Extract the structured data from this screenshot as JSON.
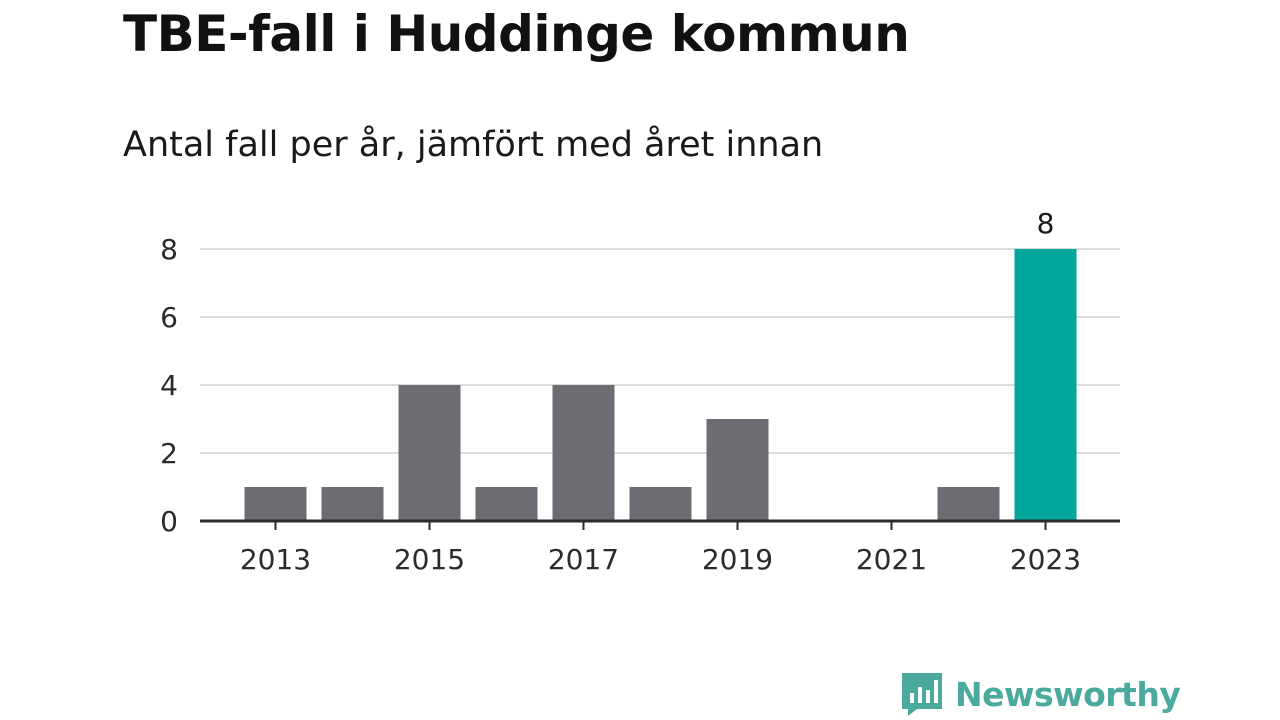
{
  "chart_data": {
    "type": "bar",
    "title": "TBE-fall i Huddinge kommun",
    "subtitle": "Antal fall per år, jämfört med året innan",
    "xlabel": "",
    "ylabel": "",
    "categories": [
      "2013",
      "2014",
      "2015",
      "2016",
      "2017",
      "2018",
      "2019",
      "2020",
      "2021",
      "2022",
      "2023"
    ],
    "values": [
      1,
      1,
      4,
      1,
      4,
      1,
      3,
      0,
      0,
      1,
      8
    ],
    "x_tick_labels": [
      "2013",
      "2015",
      "2017",
      "2019",
      "2021",
      "2023"
    ],
    "y_ticks": [
      0,
      2,
      4,
      6,
      8
    ],
    "ylim": [
      0,
      8
    ],
    "grid": true,
    "legend": "none",
    "highlight": {
      "category": "2023",
      "value_label": "8"
    },
    "colors": {
      "bar": "#6d6c72",
      "highlight": "#00a79a",
      "grid": "#dcdcdc",
      "axis": "#2b2b2b"
    }
  },
  "brand": {
    "name": "Newsworthy",
    "icon": "bar-chart-speech-bubble-icon",
    "color": "#4aaa9e"
  }
}
